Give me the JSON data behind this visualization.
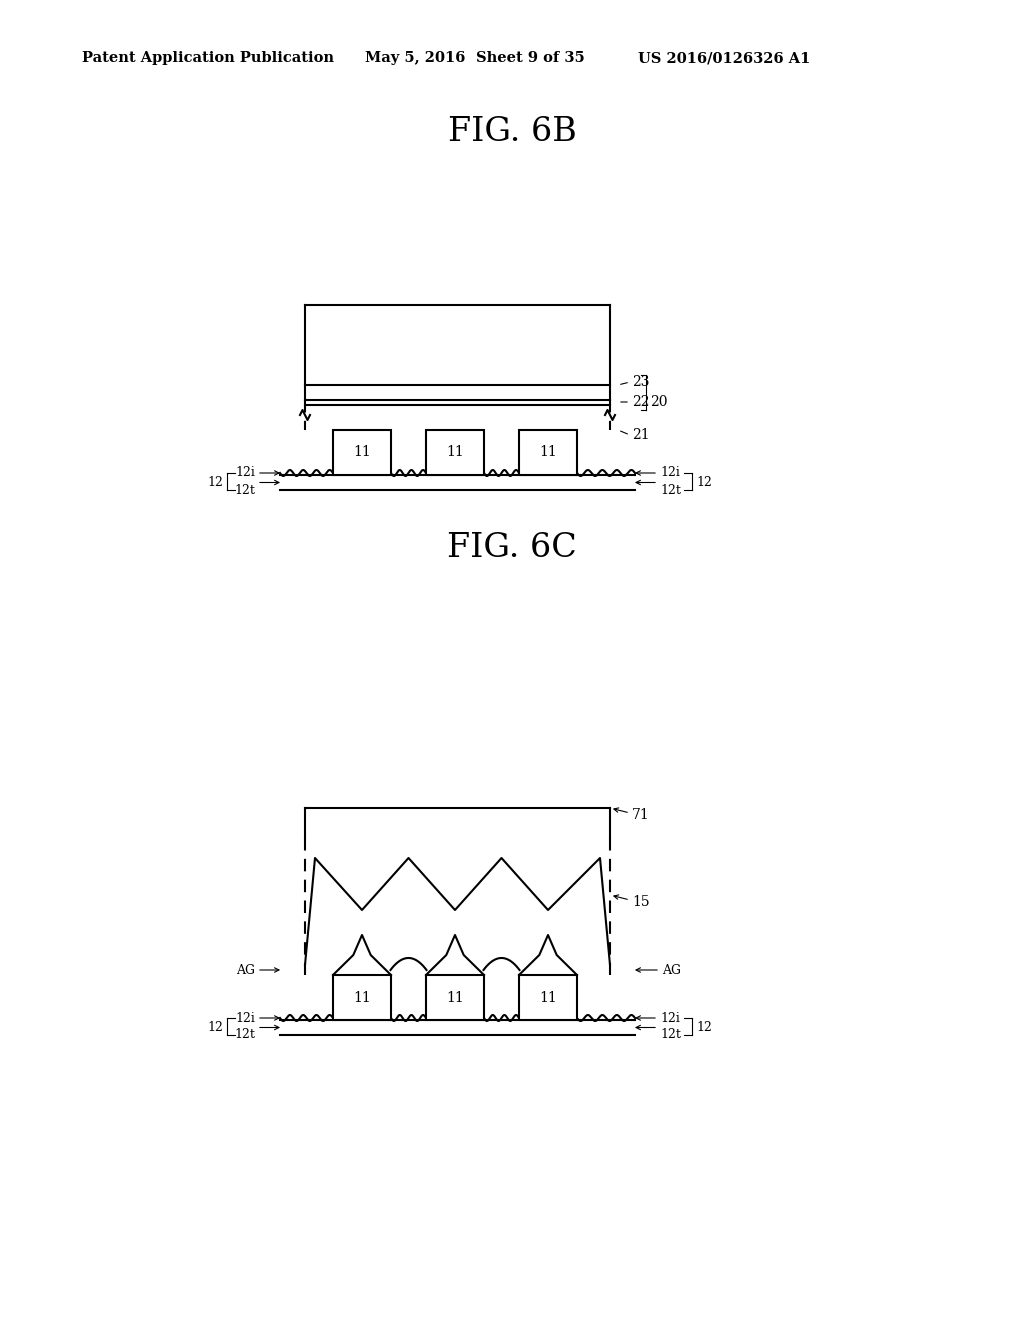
{
  "bg_color": "#ffffff",
  "header_text": "Patent Application Publication",
  "header_date": "May 5, 2016",
  "header_sheet": "Sheet 9 of 35",
  "header_patent": "US 2016/0126326 A1",
  "fig6b_title": "FIG. 6B",
  "fig6c_title": "FIG. 6C",
  "line_color": "#000000",
  "lw": 1.5
}
